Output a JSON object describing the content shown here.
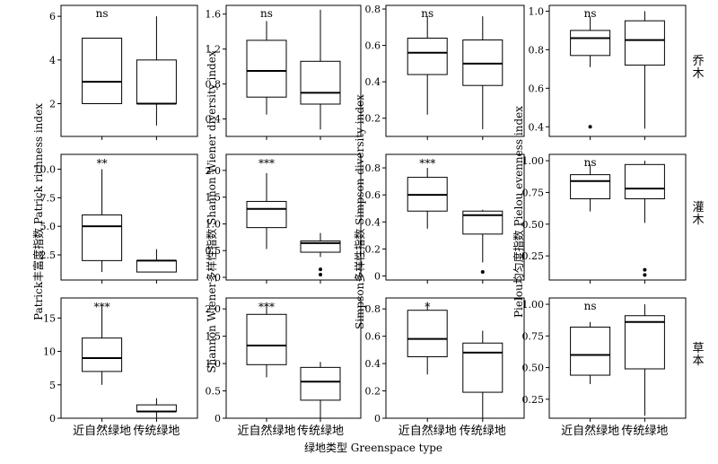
{
  "chart_data": {
    "type": "box",
    "categories": [
      "近自然绿地",
      "传统绿地"
    ],
    "xlabel": "绿地类型 Greenspace type",
    "row_labels": [
      "乔木",
      "灌木",
      "草本"
    ],
    "column_ylabels": [
      "Patrick丰富度指数 Patrick richness index",
      "Shannon Wiener多样性指数 Shannon Wiener diversity index",
      "Simpson多样性指数 Simpson diversity index",
      "Pielou均匀度指数 Pielou evenness index"
    ],
    "panels": [
      {
        "row": 0,
        "col": 0,
        "ylim": [
          0.5,
          6.5
        ],
        "ticks": [
          2,
          4,
          6
        ],
        "tick_labels": [
          "2",
          "4",
          "6"
        ],
        "sig": "ns",
        "boxes": [
          {
            "min": 2,
            "q1": 2,
            "median": 3,
            "q3": 5,
            "max": 5,
            "outliers": []
          },
          {
            "min": 1,
            "q1": 2,
            "median": 2,
            "q3": 4,
            "max": 6,
            "outliers": []
          }
        ]
      },
      {
        "row": 0,
        "col": 1,
        "ylim": [
          0.2,
          1.7
        ],
        "ticks": [
          0.4,
          0.8,
          1.2,
          1.6
        ],
        "tick_labels": [
          "0.4",
          "0.8",
          "1.2",
          "1.6"
        ],
        "sig": "ns",
        "boxes": [
          {
            "min": 0.45,
            "q1": 0.65,
            "median": 0.95,
            "q3": 1.3,
            "max": 1.52,
            "outliers": []
          },
          {
            "min": 0.28,
            "q1": 0.57,
            "median": 0.7,
            "q3": 1.06,
            "max": 1.65,
            "outliers": []
          }
        ]
      },
      {
        "row": 0,
        "col": 2,
        "ylim": [
          0.1,
          0.82
        ],
        "ticks": [
          0.2,
          0.4,
          0.6,
          0.8
        ],
        "tick_labels": [
          "0.2",
          "0.4",
          "0.6",
          "0.8"
        ],
        "sig": "ns",
        "boxes": [
          {
            "min": 0.22,
            "q1": 0.44,
            "median": 0.56,
            "q3": 0.64,
            "max": 0.76,
            "outliers": []
          },
          {
            "min": 0.14,
            "q1": 0.38,
            "median": 0.5,
            "q3": 0.63,
            "max": 0.76,
            "outliers": []
          }
        ]
      },
      {
        "row": 0,
        "col": 3,
        "ylim": [
          0.35,
          1.03
        ],
        "ticks": [
          0.4,
          0.6,
          0.8,
          1.0
        ],
        "tick_labels": [
          "0.4",
          "0.6",
          "0.8",
          "1.0"
        ],
        "sig": "ns",
        "boxes": [
          {
            "min": 0.71,
            "q1": 0.77,
            "median": 0.86,
            "q3": 0.9,
            "max": 0.97,
            "outliers": [
              0.4
            ]
          },
          {
            "min": 0.39,
            "q1": 0.72,
            "median": 0.85,
            "q3": 0.95,
            "max": 1.0,
            "outliers": []
          }
        ]
      },
      {
        "row": 1,
        "col": 0,
        "ylim": [
          0.3,
          11.3
        ],
        "ticks": [
          2.5,
          5.0,
          7.5,
          10.0
        ],
        "tick_labels": [
          "2.5",
          "5.0",
          "7.5",
          "10.0"
        ],
        "sig": "**",
        "boxes": [
          {
            "min": 1,
            "q1": 2,
            "median": 5,
            "q3": 6,
            "max": 10,
            "outliers": []
          },
          {
            "min": 1,
            "q1": 1,
            "median": 2,
            "q3": 2,
            "max": 3,
            "outliers": []
          }
        ]
      },
      {
        "row": 1,
        "col": 1,
        "ylim": [
          -0.05,
          2.3
        ],
        "ticks": [
          0,
          0.5,
          1.0,
          1.5,
          2.0
        ],
        "tick_labels": [
          "0",
          "0.5",
          "1.0",
          "1.5",
          "2.0"
        ],
        "sig": "***",
        "boxes": [
          {
            "min": 0.53,
            "q1": 0.93,
            "median": 1.28,
            "q3": 1.42,
            "max": 1.95,
            "outliers": []
          },
          {
            "min": 0.38,
            "q1": 0.47,
            "median": 0.64,
            "q3": 0.68,
            "max": 0.83,
            "outliers": [
              0.15,
              0.05
            ]
          }
        ]
      },
      {
        "row": 1,
        "col": 2,
        "ylim": [
          -0.03,
          0.9
        ],
        "ticks": [
          0,
          0.2,
          0.4,
          0.6,
          0.8
        ],
        "tick_labels": [
          "0",
          "0.2",
          "0.4",
          "0.6",
          "0.8"
        ],
        "sig": "***",
        "boxes": [
          {
            "min": 0.35,
            "q1": 0.48,
            "median": 0.6,
            "q3": 0.73,
            "max": 0.8,
            "outliers": []
          },
          {
            "min": 0.1,
            "q1": 0.31,
            "median": 0.45,
            "q3": 0.48,
            "max": 0.49,
            "outliers": [
              0.03
            ]
          }
        ]
      },
      {
        "row": 1,
        "col": 3,
        "ylim": [
          0.06,
          1.05
        ],
        "ticks": [
          0.25,
          0.5,
          0.75,
          1.0
        ],
        "tick_labels": [
          "0.25",
          "0.50",
          "0.75",
          "1.00"
        ],
        "sig": "ns",
        "boxes": [
          {
            "min": 0.6,
            "q1": 0.7,
            "median": 0.84,
            "q3": 0.89,
            "max": 0.97,
            "outliers": []
          },
          {
            "min": 0.51,
            "q1": 0.7,
            "median": 0.78,
            "q3": 0.97,
            "max": 1.0,
            "outliers": [
              0.14,
              0.1
            ]
          }
        ]
      },
      {
        "row": 2,
        "col": 0,
        "ylim": [
          0,
          18
        ],
        "ticks": [
          0,
          5,
          10,
          15
        ],
        "tick_labels": [
          "0",
          "5",
          "10",
          "15"
        ],
        "sig": "***",
        "boxes": [
          {
            "min": 5,
            "q1": 7,
            "median": 9,
            "q3": 12,
            "max": 17,
            "outliers": []
          },
          {
            "min": 0,
            "q1": 1,
            "median": 1,
            "q3": 2,
            "max": 3,
            "outliers": []
          }
        ]
      },
      {
        "row": 2,
        "col": 1,
        "ylim": [
          0,
          2.2
        ],
        "ticks": [
          0,
          0.5,
          1.0,
          1.5,
          2.0
        ],
        "tick_labels": [
          "0",
          "0.5",
          "1.0",
          "1.5",
          "2.0"
        ],
        "sig": "***",
        "boxes": [
          {
            "min": 0.75,
            "q1": 0.98,
            "median": 1.33,
            "q3": 1.9,
            "max": 2.12,
            "outliers": []
          },
          {
            "min": 0.0,
            "q1": 0.33,
            "median": 0.67,
            "q3": 0.93,
            "max": 1.03,
            "outliers": []
          }
        ]
      },
      {
        "row": 2,
        "col": 2,
        "ylim": [
          0,
          0.88
        ],
        "ticks": [
          0,
          0.2,
          0.4,
          0.6,
          0.8
        ],
        "tick_labels": [
          "0",
          "0.2",
          "0.4",
          "0.6",
          "0.8"
        ],
        "sig": "*",
        "boxes": [
          {
            "min": 0.32,
            "q1": 0.45,
            "median": 0.58,
            "q3": 0.79,
            "max": 0.85,
            "outliers": []
          },
          {
            "min": 0.0,
            "q1": 0.19,
            "median": 0.48,
            "q3": 0.55,
            "max": 0.64,
            "outliers": []
          }
        ]
      },
      {
        "row": 2,
        "col": 3,
        "ylim": [
          0.1,
          1.05
        ],
        "ticks": [
          0.25,
          0.5,
          0.75,
          1.0
        ],
        "tick_labels": [
          "0.25",
          "0.50",
          "0.75",
          "1.00"
        ],
        "sig": "ns",
        "boxes": [
          {
            "min": 0.37,
            "q1": 0.44,
            "median": 0.6,
            "q3": 0.82,
            "max": 0.86,
            "outliers": []
          },
          {
            "min": 0.12,
            "q1": 0.49,
            "median": 0.86,
            "q3": 0.91,
            "max": 1.0,
            "outliers": []
          }
        ]
      }
    ]
  }
}
